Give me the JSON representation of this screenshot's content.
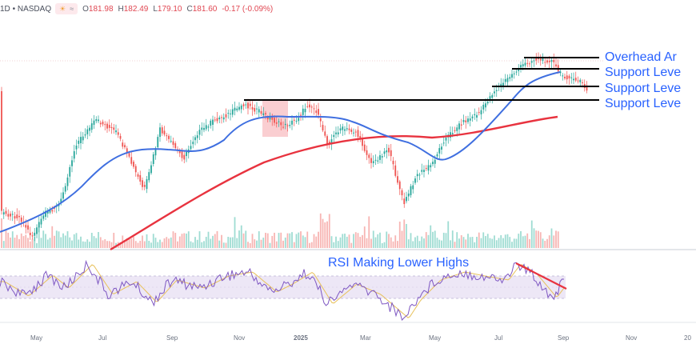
{
  "header": {
    "timeframe": "1D",
    "separator": "•",
    "symbol": "NASDAQ",
    "badge_sun_icon": "sun-icon",
    "badge_approx_icon": "approx-icon",
    "ohlc": {
      "o_label": "O",
      "o_value": "181.98",
      "h_label": "H",
      "h_value": "182.49",
      "l_label": "L",
      "l_value": "179.10",
      "c_label": "C",
      "c_value": "181.60",
      "change": "-0.17 (-0.09%)"
    }
  },
  "colors": {
    "up": "#26a69a",
    "down": "#ef5350",
    "ma50": "#3f6fe0",
    "ma200": "#e8333f",
    "annotation": "#2962ff",
    "rsi_line": "#7e57c2",
    "rsi_signal": "#e8c15a",
    "rsi_band": "#ede7f6",
    "volume_up": "#9fdcd3",
    "volume_down": "#f7b5b3",
    "highlight_box": "#f5a6ab"
  },
  "annotations": {
    "overhead": "Overhead Ar",
    "support1": "Support Leve",
    "support2": "Support Leve",
    "support3": "Support Leve",
    "rsi_title": "RSI Making Lower Highs"
  },
  "chart_data": {
    "type": "candlestick",
    "symbol": "NASDAQ",
    "timeframe": "1D",
    "x_axis_labels": [
      "May",
      "Jul",
      "Sep",
      "Nov",
      "2025",
      "Mar",
      "May",
      "Jul",
      "Sep",
      "Nov",
      "20"
    ],
    "ohlc_last": {
      "open": 181.98,
      "high": 182.49,
      "low": 179.1,
      "close": 181.6,
      "change": -0.17,
      "change_pct": -0.09
    },
    "indicators": [
      "50-day moving average",
      "200-day moving average",
      "Volume",
      "RSI"
    ],
    "horizontal_levels": [
      "Overhead Area",
      "Support Level",
      "Support Level",
      "Support Level"
    ]
  }
}
